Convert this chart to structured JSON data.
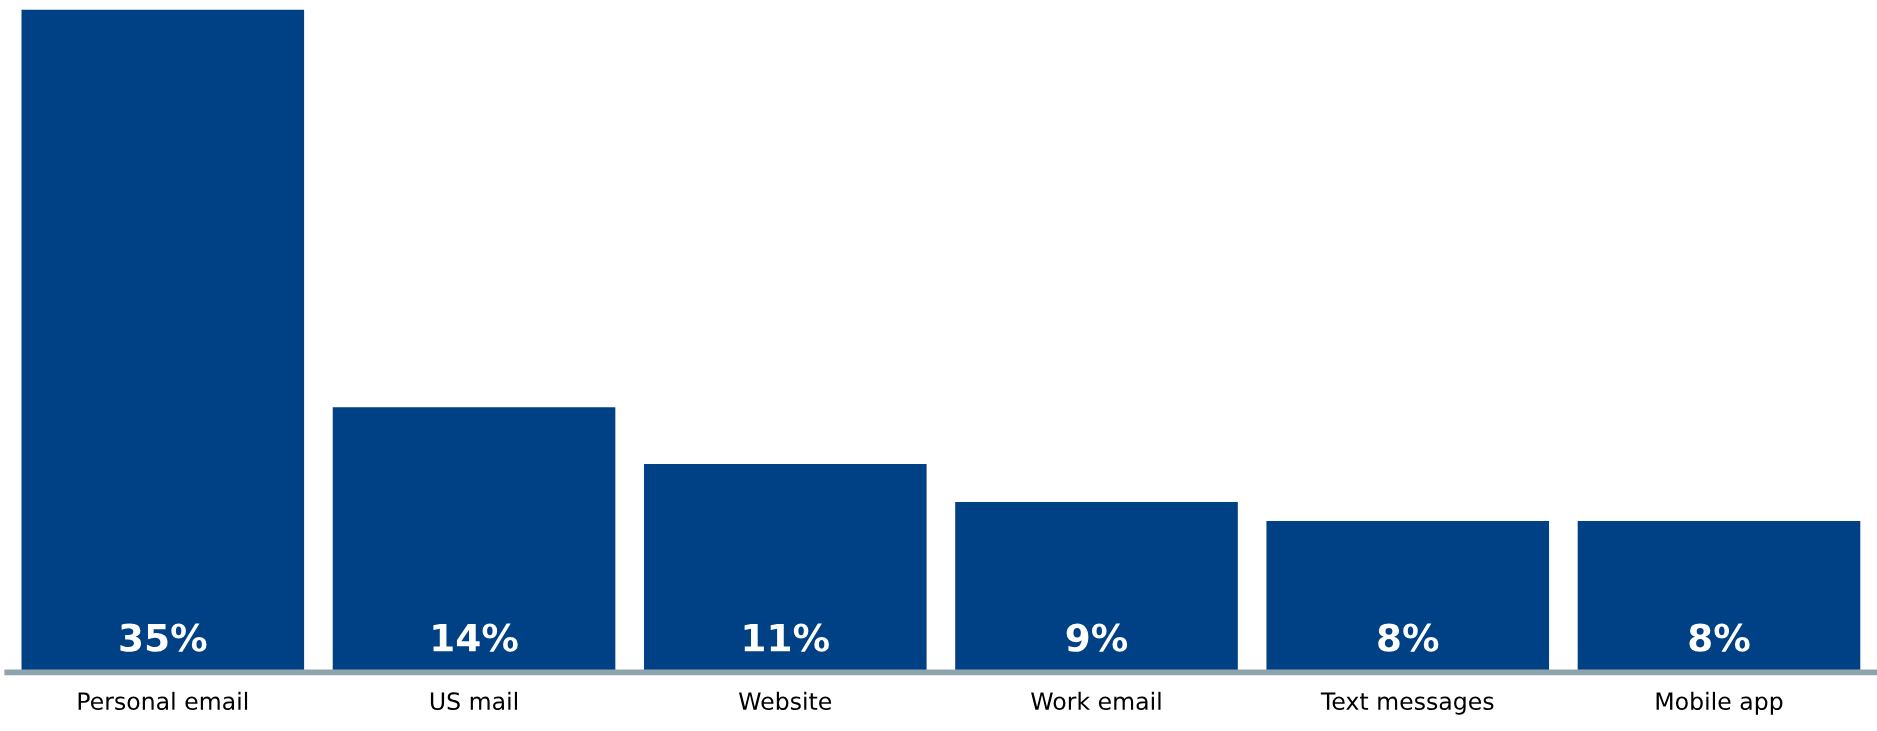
{
  "chart_data": {
    "type": "bar",
    "categories": [
      "Personal email",
      "US mail",
      "Website",
      "Work email",
      "Text messages",
      "Mobile app"
    ],
    "values": [
      35,
      14,
      11,
      9,
      8,
      8
    ],
    "value_labels": [
      "35%",
      "14%",
      "11%",
      "9%",
      "8%",
      "8%"
    ],
    "color": "#004085",
    "grid": false,
    "legend": false
  }
}
